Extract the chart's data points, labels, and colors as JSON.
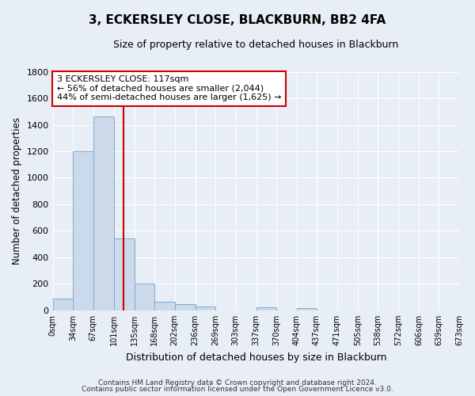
{
  "title": "3, ECKERSLEY CLOSE, BLACKBURN, BB2 4FA",
  "subtitle": "Size of property relative to detached houses in Blackburn",
  "xlabel": "Distribution of detached houses by size in Blackburn",
  "ylabel": "Number of detached properties",
  "bar_color": "#ccd9ea",
  "bar_edge_color": "#7aadd4",
  "background_color": "#e8eef5",
  "grid_color": "#ffffff",
  "bin_edges": [
    0,
    34,
    67,
    101,
    135,
    168,
    202,
    236,
    269,
    303,
    337,
    370,
    404,
    437,
    471,
    505,
    538,
    572,
    606,
    639,
    673
  ],
  "bin_labels": [
    "0sqm",
    "34sqm",
    "67sqm",
    "101sqm",
    "135sqm",
    "168sqm",
    "202sqm",
    "236sqm",
    "269sqm",
    "303sqm",
    "337sqm",
    "370sqm",
    "404sqm",
    "437sqm",
    "471sqm",
    "505sqm",
    "538sqm",
    "572sqm",
    "606sqm",
    "639sqm",
    "673sqm"
  ],
  "bar_heights": [
    90,
    1200,
    1460,
    540,
    200,
    65,
    48,
    30,
    0,
    0,
    20,
    0,
    15,
    0,
    0,
    0,
    0,
    0,
    0,
    0
  ],
  "ylim": [
    0,
    1800
  ],
  "yticks": [
    0,
    200,
    400,
    600,
    800,
    1000,
    1200,
    1400,
    1600,
    1800
  ],
  "property_line_x": 117,
  "annotation_title": "3 ECKERSLEY CLOSE: 117sqm",
  "annotation_line1": "← 56% of detached houses are smaller (2,044)",
  "annotation_line2": "44% of semi-detached houses are larger (1,625) →",
  "annotation_box_color": "#ffffff",
  "annotation_box_edge_color": "#cc0000",
  "footnote1": "Contains HM Land Registry data © Crown copyright and database right 2024.",
  "footnote2": "Contains public sector information licensed under the Open Government Licence v3.0."
}
